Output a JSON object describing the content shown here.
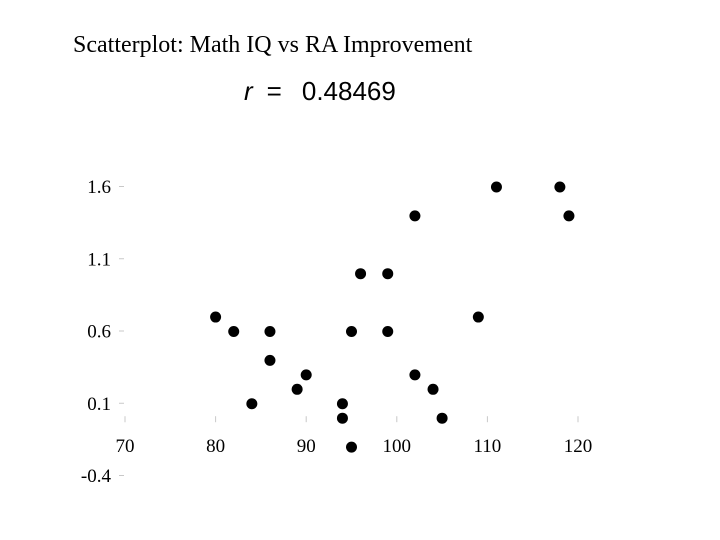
{
  "slide": {
    "title": "Scatterplot: Math IQ vs RA Improvement",
    "correlation": {
      "symbol": "r",
      "equals": "=",
      "value": "0.48469"
    }
  },
  "chart_data": {
    "type": "scatter",
    "title": "Scatterplot: Math IQ vs RA Improvement",
    "xlabel": "",
    "ylabel": "",
    "xlim": [
      70,
      120
    ],
    "ylim": [
      -0.4,
      1.6
    ],
    "x_ticks": [
      70,
      80,
      90,
      100,
      110,
      120
    ],
    "y_ticks": [
      -0.4,
      0.1,
      0.6,
      1.1,
      1.6
    ],
    "x_tick_labels": [
      "70",
      "80",
      "90",
      "100",
      "110",
      "120"
    ],
    "y_tick_labels": [
      "-0.4",
      "0.1",
      "0.6",
      "1.1",
      "1.6"
    ],
    "grid": false,
    "marker_color": "#000000",
    "series": [
      {
        "points": [
          {
            "x": 80,
            "y": 0.7
          },
          {
            "x": 82,
            "y": 0.6
          },
          {
            "x": 84,
            "y": 0.1
          },
          {
            "x": 86,
            "y": 0.6
          },
          {
            "x": 86,
            "y": 0.4
          },
          {
            "x": 89,
            "y": 0.2
          },
          {
            "x": 90,
            "y": 0.3
          },
          {
            "x": 94,
            "y": 0.1
          },
          {
            "x": 94,
            "y": 0.0
          },
          {
            "x": 95,
            "y": 0.6
          },
          {
            "x": 95,
            "y": -0.2
          },
          {
            "x": 96,
            "y": 1.0
          },
          {
            "x": 99,
            "y": 1.0
          },
          {
            "x": 99,
            "y": 0.6
          },
          {
            "x": 102,
            "y": 1.4
          },
          {
            "x": 102,
            "y": 0.3
          },
          {
            "x": 104,
            "y": 0.2
          },
          {
            "x": 105,
            "y": 0.0
          },
          {
            "x": 109,
            "y": 0.7
          },
          {
            "x": 111,
            "y": 1.6
          },
          {
            "x": 118,
            "y": 1.6
          },
          {
            "x": 119,
            "y": 1.4
          }
        ]
      }
    ]
  }
}
